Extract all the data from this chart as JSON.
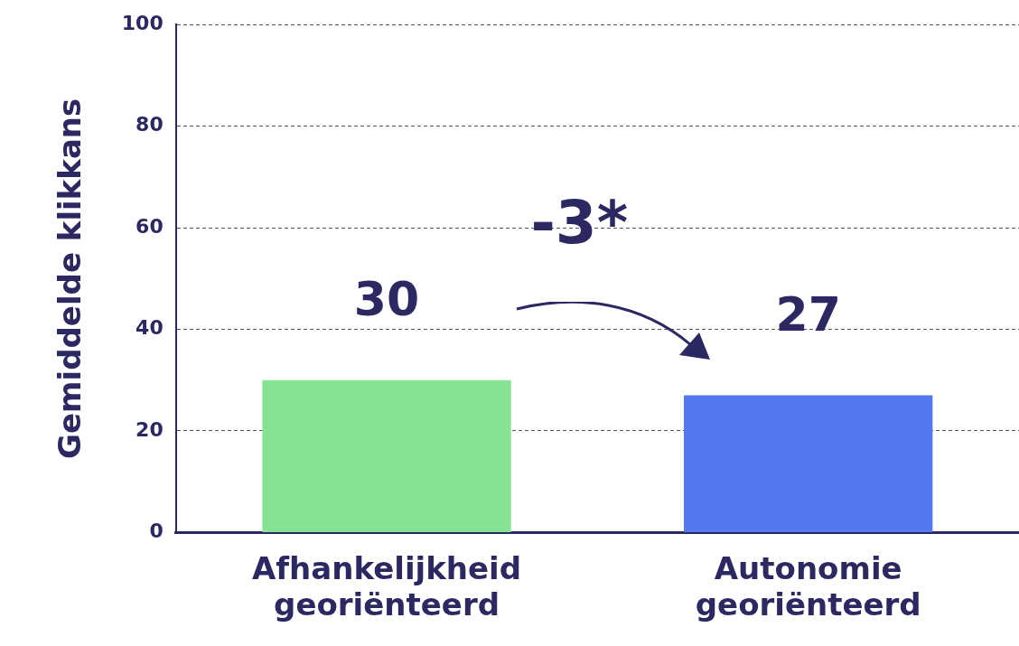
{
  "chart_data": {
    "type": "bar",
    "ylabel": "Gemiddelde klikkans",
    "categories": [
      "Afhankelijkheid georiënteerd",
      "Autonomie georiënteerd"
    ],
    "values": [
      30,
      27
    ],
    "colors": [
      "#86e394",
      "#5577f0"
    ],
    "ylim": [
      0,
      100
    ],
    "yticks": [
      0,
      20,
      40,
      60,
      80,
      100
    ],
    "grid": "y",
    "data_labels": true,
    "legend": false,
    "annotations": [
      "-3*"
    ]
  }
}
